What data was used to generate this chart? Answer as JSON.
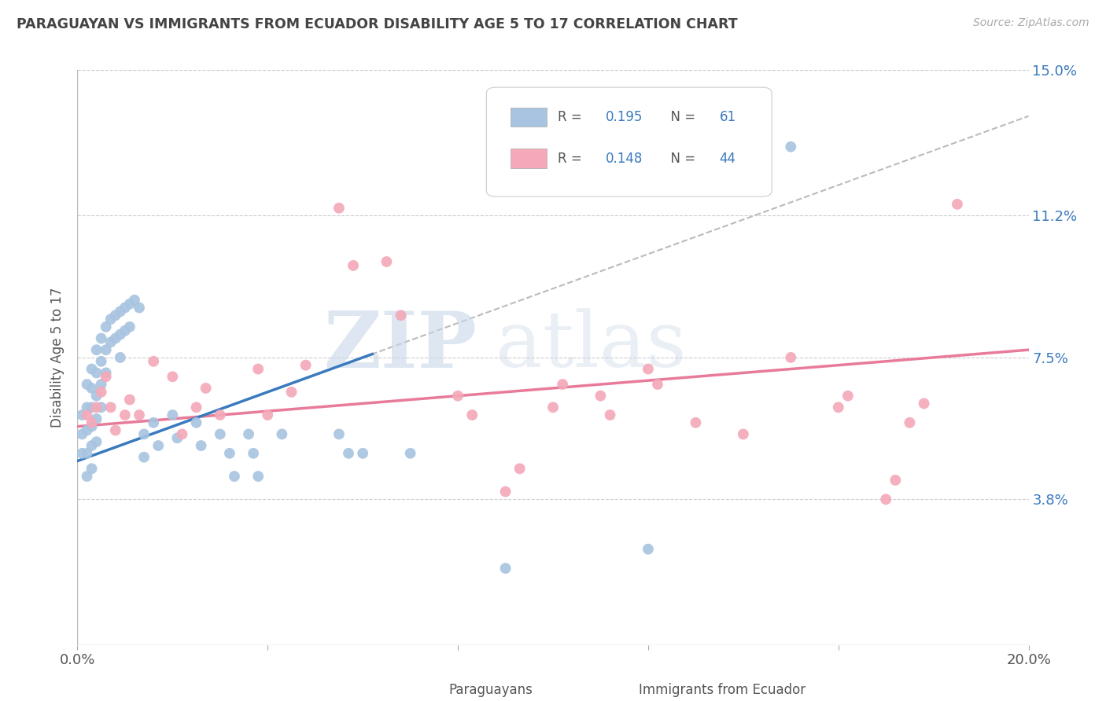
{
  "title": "PARAGUAYAN VS IMMIGRANTS FROM ECUADOR DISABILITY AGE 5 TO 17 CORRELATION CHART",
  "source": "Source: ZipAtlas.com",
  "ylabel": "Disability Age 5 to 17",
  "xlim": [
    0.0,
    0.2
  ],
  "ylim": [
    0.0,
    0.15
  ],
  "yticks": [
    0.0,
    0.038,
    0.075,
    0.112,
    0.15
  ],
  "ytick_labels": [
    "",
    "3.8%",
    "7.5%",
    "11.2%",
    "15.0%"
  ],
  "xticks": [
    0.0,
    0.04,
    0.08,
    0.12,
    0.16,
    0.2
  ],
  "xtick_labels": [
    "0.0%",
    "",
    "",
    "",
    "",
    "20.0%"
  ],
  "paraguayan_R": 0.195,
  "paraguayan_N": 61,
  "ecuador_R": 0.148,
  "ecuador_N": 44,
  "paraguayan_color": "#a8c4e0",
  "ecuador_color": "#f4a8b8",
  "paraguayan_line_color": "#3a7abf",
  "ecuador_line_color": "#e87a9a",
  "trend_extension_color": "#bbbbbb",
  "background_color": "#ffffff",
  "watermark_zip": "ZIP",
  "watermark_atlas": "atlas",
  "paraguayan_x": [
    0.001,
    0.001,
    0.001,
    0.002,
    0.002,
    0.002,
    0.002,
    0.002,
    0.003,
    0.003,
    0.003,
    0.003,
    0.003,
    0.003,
    0.004,
    0.004,
    0.004,
    0.004,
    0.004,
    0.005,
    0.005,
    0.005,
    0.005,
    0.006,
    0.006,
    0.006,
    0.007,
    0.007,
    0.008,
    0.008,
    0.009,
    0.009,
    0.009,
    0.01,
    0.01,
    0.011,
    0.011,
    0.012,
    0.013,
    0.014,
    0.014,
    0.016,
    0.017,
    0.02,
    0.021,
    0.025,
    0.026,
    0.03,
    0.032,
    0.033,
    0.036,
    0.037,
    0.038,
    0.043,
    0.055,
    0.057,
    0.06,
    0.07,
    0.09,
    0.12,
    0.15
  ],
  "paraguayan_y": [
    0.06,
    0.055,
    0.05,
    0.068,
    0.062,
    0.056,
    0.05,
    0.044,
    0.072,
    0.067,
    0.062,
    0.057,
    0.052,
    0.046,
    0.077,
    0.071,
    0.065,
    0.059,
    0.053,
    0.08,
    0.074,
    0.068,
    0.062,
    0.083,
    0.077,
    0.071,
    0.085,
    0.079,
    0.086,
    0.08,
    0.087,
    0.081,
    0.075,
    0.088,
    0.082,
    0.089,
    0.083,
    0.09,
    0.088,
    0.055,
    0.049,
    0.058,
    0.052,
    0.06,
    0.054,
    0.058,
    0.052,
    0.055,
    0.05,
    0.044,
    0.055,
    0.05,
    0.044,
    0.055,
    0.055,
    0.05,
    0.05,
    0.05,
    0.02,
    0.025,
    0.13
  ],
  "ecuador_x": [
    0.002,
    0.003,
    0.004,
    0.005,
    0.006,
    0.007,
    0.008,
    0.01,
    0.011,
    0.013,
    0.016,
    0.02,
    0.022,
    0.025,
    0.027,
    0.03,
    0.038,
    0.04,
    0.045,
    0.048,
    0.055,
    0.058,
    0.065,
    0.068,
    0.08,
    0.083,
    0.09,
    0.093,
    0.1,
    0.102,
    0.11,
    0.112,
    0.12,
    0.122,
    0.13,
    0.14,
    0.15,
    0.16,
    0.162,
    0.17,
    0.172,
    0.175,
    0.178,
    0.185
  ],
  "ecuador_y": [
    0.06,
    0.058,
    0.062,
    0.066,
    0.07,
    0.062,
    0.056,
    0.06,
    0.064,
    0.06,
    0.074,
    0.07,
    0.055,
    0.062,
    0.067,
    0.06,
    0.072,
    0.06,
    0.066,
    0.073,
    0.114,
    0.099,
    0.1,
    0.086,
    0.065,
    0.06,
    0.04,
    0.046,
    0.062,
    0.068,
    0.065,
    0.06,
    0.072,
    0.068,
    0.058,
    0.055,
    0.075,
    0.062,
    0.065,
    0.038,
    0.043,
    0.058,
    0.063,
    0.115
  ]
}
